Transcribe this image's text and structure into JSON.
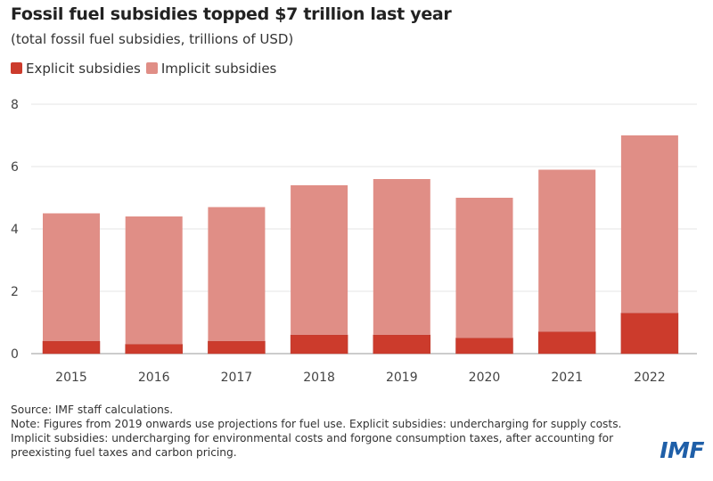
{
  "chart_data": {
    "type": "bar",
    "stacked": true,
    "title": "Fossil fuel subsidies topped $7 trillion last year",
    "subtitle": "(total fossil fuel subsidies, trillions of USD)",
    "categories": [
      "2015",
      "2016",
      "2017",
      "2018",
      "2019",
      "2020",
      "2021",
      "2022"
    ],
    "series": [
      {
        "name": "Explicit subsidies",
        "color": "#cc3b2c",
        "values": [
          0.4,
          0.3,
          0.4,
          0.6,
          0.6,
          0.5,
          0.7,
          1.3
        ]
      },
      {
        "name": "Implicit subsidies",
        "color": "#e08e86",
        "values": [
          4.1,
          4.1,
          4.3,
          4.8,
          5.0,
          4.5,
          5.2,
          5.7
        ]
      }
    ],
    "ylim": [
      0,
      8
    ],
    "yticks": [
      "0",
      "2",
      "4",
      "6",
      "8"
    ],
    "grid": true,
    "legend": "top-left"
  },
  "notes": {
    "source": "Source: IMF staff calculations.",
    "note": "Note: Figures from 2019 onwards use projections for fuel use. Explicit subsidies: undercharging for supply costs. Implicit subsidies: undercharging for environmental costs and forgone consumption taxes, after accounting for preexisting fuel taxes and carbon pricing."
  },
  "logo": "IMF"
}
